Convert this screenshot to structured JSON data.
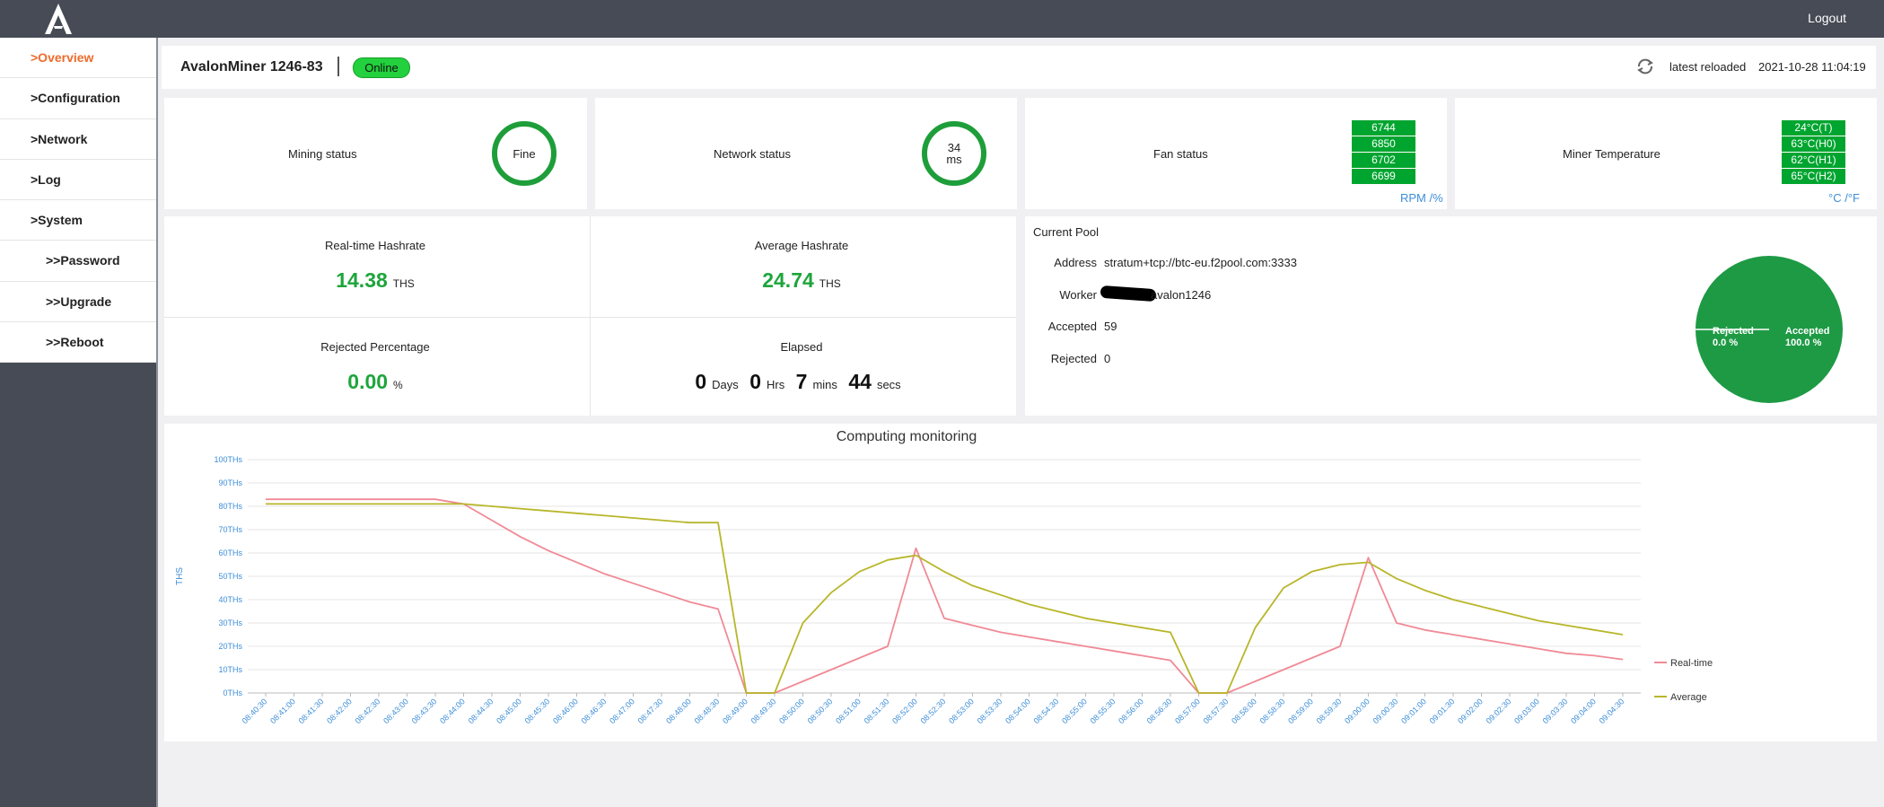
{
  "topbar": {
    "logout_label": "Logout"
  },
  "sidebar": {
    "items": [
      {
        "label": ">Overview"
      },
      {
        "label": ">Configuration"
      },
      {
        "label": ">Network"
      },
      {
        "label": ">Log"
      },
      {
        "label": ">System"
      },
      {
        "label": ">>Password"
      },
      {
        "label": ">>Upgrade"
      },
      {
        "label": ">>Reboot"
      }
    ]
  },
  "header": {
    "device_name": "AvalonMiner 1246-83",
    "status_badge": "Online",
    "reload_label": "latest reloaded",
    "reload_time": "2021-10-28 11:04:19"
  },
  "status_cards": {
    "mining": {
      "label": "Mining status",
      "value": "Fine"
    },
    "network": {
      "label": "Network status",
      "value": "34",
      "unit": "ms"
    },
    "fan": {
      "label": "Fan status",
      "values": [
        "6744",
        "6850",
        "6702",
        "6699"
      ],
      "unit_link": "RPM /%"
    },
    "temperature": {
      "label": "Miner Temperature",
      "values": [
        "24°C(T)",
        "63°C(H0)",
        "62°C(H1)",
        "65°C(H2)"
      ],
      "unit_link": "°C /°F"
    }
  },
  "hashrate": {
    "realtime": {
      "label": "Real-time Hashrate",
      "value": "14.38",
      "unit": "THS"
    },
    "average": {
      "label": "Average Hashrate",
      "value": "24.74",
      "unit": "THS"
    },
    "rejected": {
      "label": "Rejected Percentage",
      "value": "0.00",
      "unit": "%"
    },
    "elapsed": {
      "label": "Elapsed",
      "days": "0",
      "days_unit": "Days",
      "hrs": "0",
      "hrs_unit": "Hrs",
      "mins": "7",
      "mins_unit": "mins",
      "secs": "44",
      "secs_unit": "secs"
    }
  },
  "pool": {
    "title": "Current Pool",
    "address_label": "Address",
    "address": "stratum+tcp://btc-eu.f2pool.com:3333",
    "worker_label": "Worker",
    "worker": "avalon1246",
    "accepted_label": "Accepted",
    "accepted": "59",
    "rejected_label": "Rejected",
    "rejected": "0",
    "pie_rejected_label": "Rejected",
    "pie_rejected_pct": "0.0 %",
    "pie_accepted_label": "Accepted",
    "pie_accepted_pct": "100.0 %",
    "pie_color": "#1e9a45"
  },
  "colors": {
    "accent": "#ef6b2b",
    "green": "#1ea53c",
    "realtime": "#f08a96",
    "average": "#b8b62a"
  },
  "chart_data": {
    "type": "line",
    "title": "Computing monitoring",
    "ylabel": "THS",
    "ylim": [
      0,
      100
    ],
    "yticks": [
      "0THs",
      "10THs",
      "20THs",
      "30THs",
      "40THs",
      "50THs",
      "60THs",
      "70THs",
      "80THs",
      "90THs",
      "100THs"
    ],
    "x": [
      "08:40:30",
      "08:41:00",
      "08:41:30",
      "08:42:00",
      "08:42:30",
      "08:43:00",
      "08:43:30",
      "08:44:00",
      "08:44:30",
      "08:45:00",
      "08:45:30",
      "08:46:00",
      "08:46:30",
      "08:47:00",
      "08:47:30",
      "08:48:00",
      "08:48:30",
      "08:49:00",
      "08:49:30",
      "08:50:00",
      "08:50:30",
      "08:51:00",
      "08:51:30",
      "08:52:00",
      "08:52:30",
      "08:53:00",
      "08:53:30",
      "08:54:00",
      "08:54:30",
      "08:55:00",
      "08:55:30",
      "08:56:00",
      "08:56:30",
      "08:57:00",
      "08:57:30",
      "08:58:00",
      "08:58:30",
      "08:59:00",
      "08:59:30",
      "09:00:00",
      "09:00:30",
      "09:01:00",
      "09:01:30",
      "09:02:00",
      "09:02:30",
      "09:03:00",
      "09:03:30",
      "09:04:00",
      "09:04:30"
    ],
    "series": [
      {
        "name": "Real-time",
        "color": "#f08a96",
        "values": [
          83,
          83,
          83,
          83,
          83,
          83,
          83,
          81,
          74,
          67,
          61,
          56,
          51,
          47,
          43,
          39,
          36,
          0,
          0,
          5,
          10,
          15,
          20,
          62,
          32,
          29,
          26,
          24,
          22,
          20,
          18,
          16,
          14,
          0,
          0,
          5,
          10,
          15,
          20,
          58,
          30,
          27,
          25,
          23,
          21,
          19,
          17,
          16,
          14.4
        ]
      },
      {
        "name": "Average",
        "color": "#b8b62a",
        "values": [
          81,
          81,
          81,
          81,
          81,
          81,
          81,
          81,
          80,
          79,
          78,
          77,
          76,
          75,
          74,
          73,
          73,
          0,
          0,
          30,
          43,
          52,
          57,
          59,
          52,
          46,
          42,
          38,
          35,
          32,
          30,
          28,
          26,
          0,
          0,
          28,
          45,
          52,
          55,
          56,
          49,
          44,
          40,
          37,
          34,
          31,
          29,
          27,
          25
        ]
      }
    ],
    "legend": "right"
  }
}
